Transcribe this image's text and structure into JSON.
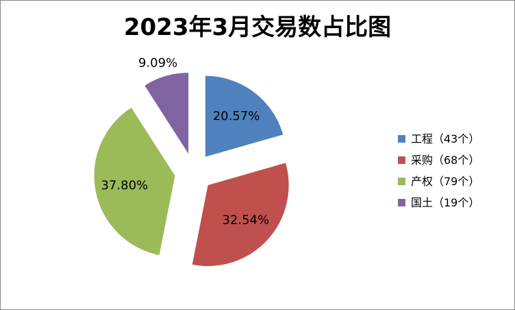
{
  "chart_data": {
    "type": "pie",
    "title": "2023年3月交易数占比图",
    "exploded": true,
    "legend_position": "right",
    "slices": [
      {
        "label": "工程（43个）",
        "category": "工程",
        "count": 43,
        "percent_label": "20.57%",
        "value": 20.57,
        "color": "#4F81BD"
      },
      {
        "label": "采购（68个）",
        "category": "采购",
        "count": 68,
        "percent_label": "32.54%",
        "value": 32.54,
        "color": "#C0504D"
      },
      {
        "label": "产权（79个）",
        "category": "产权",
        "count": 79,
        "percent_label": "37.80%",
        "value": 37.8,
        "color": "#9BBB59"
      },
      {
        "label": "国土（19个）",
        "category": "国土",
        "count": 19,
        "percent_label": "9.09%",
        "value": 9.09,
        "color": "#8064A2"
      }
    ]
  }
}
